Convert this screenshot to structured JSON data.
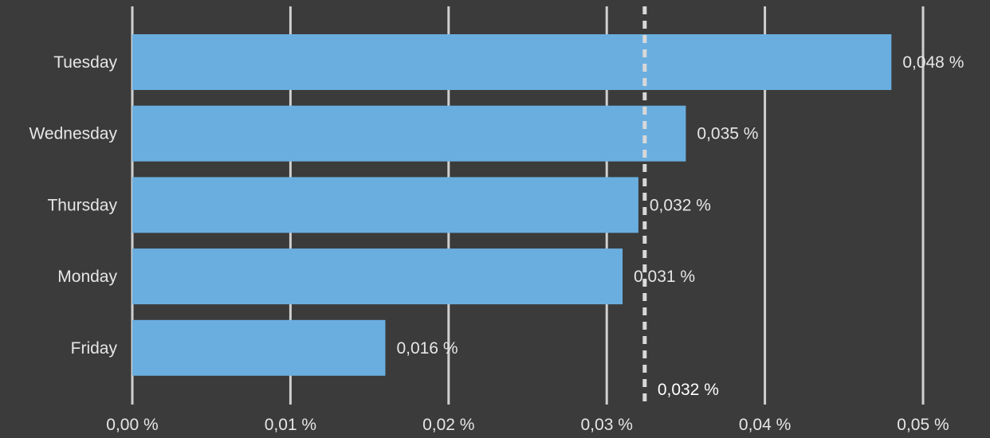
{
  "chart_data": {
    "type": "bar",
    "orientation": "horizontal",
    "categories": [
      "Tuesday",
      "Wednesday",
      "Thursday",
      "Monday",
      "Friday"
    ],
    "values": [
      0.048,
      0.035,
      0.032,
      0.031,
      0.016
    ],
    "value_labels": [
      "0,048 %",
      "0,035 %",
      "0,032 %",
      "0,031 %",
      "0,016 %"
    ],
    "xlim": [
      0,
      0.05
    ],
    "x_ticks": [
      0,
      0.01,
      0.02,
      0.03,
      0.04,
      0.05
    ],
    "x_tick_labels": [
      "0,00 %",
      "0,01 %",
      "0,02 %",
      "0,03 %",
      "0,04 %",
      "0,05 %"
    ],
    "reference_line": {
      "value": 0.0324,
      "label": "0,032 %",
      "style": "dashed"
    },
    "grid": "vertical",
    "legend": "none"
  },
  "colors": {
    "background": "#3b3b3b",
    "bar": "#6aaee0",
    "grid": "#d0d0d0",
    "reference": "#d8d8d8",
    "text": "#e6e6e6"
  }
}
